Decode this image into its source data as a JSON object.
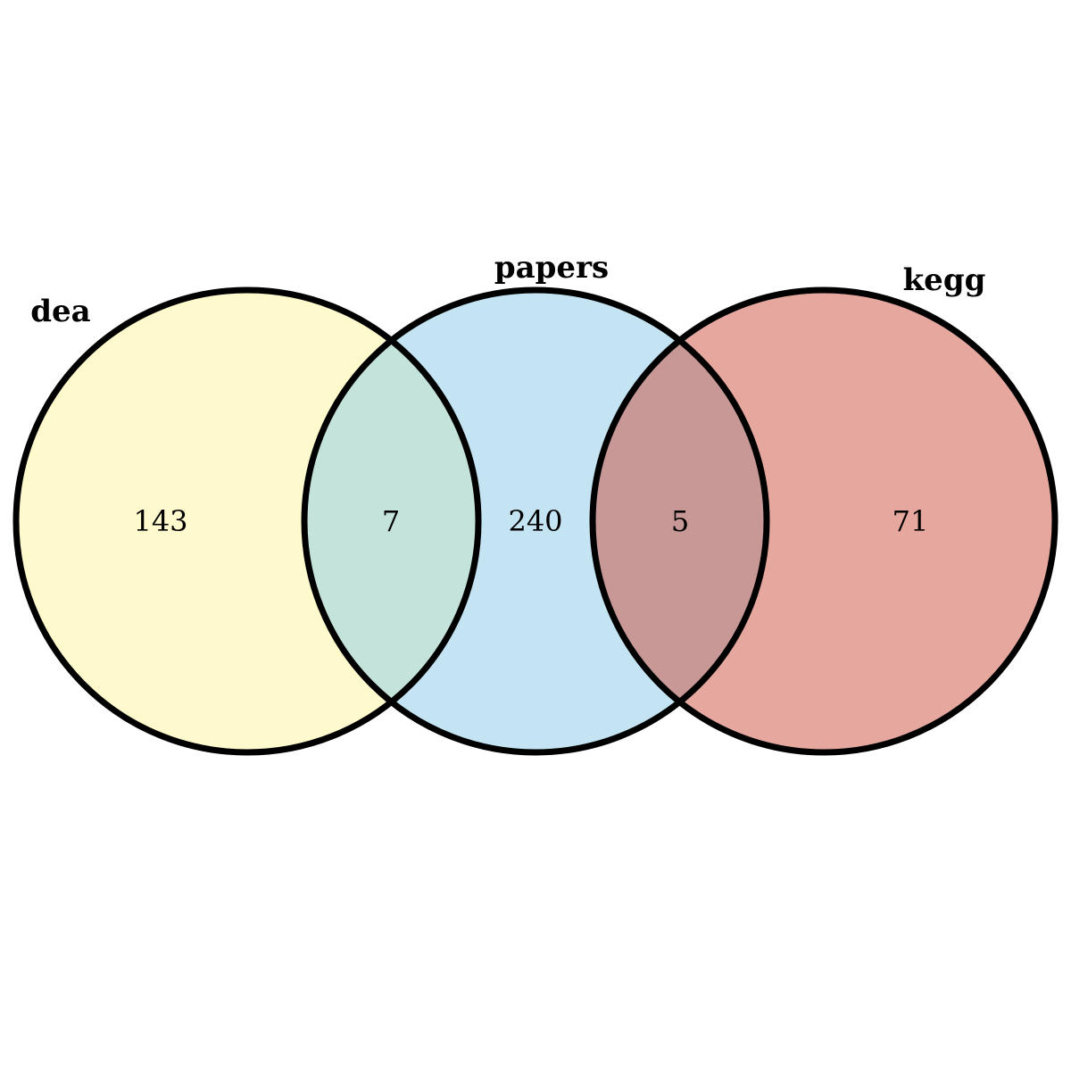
{
  "venn": {
    "sets": [
      {
        "name": "dea",
        "color": "#fffacd"
      },
      {
        "name": "papers",
        "color": "#c4e4f3"
      },
      {
        "name": "kegg",
        "color": "#e5a79e"
      }
    ],
    "overlap_colors": {
      "dea_papers": "#c4e3da",
      "papers_kegg": "#c79896"
    },
    "counts": {
      "dea_only": "143",
      "dea_papers": "7",
      "papers_only": "240",
      "papers_kegg": "5",
      "kegg_only": "71"
    }
  }
}
